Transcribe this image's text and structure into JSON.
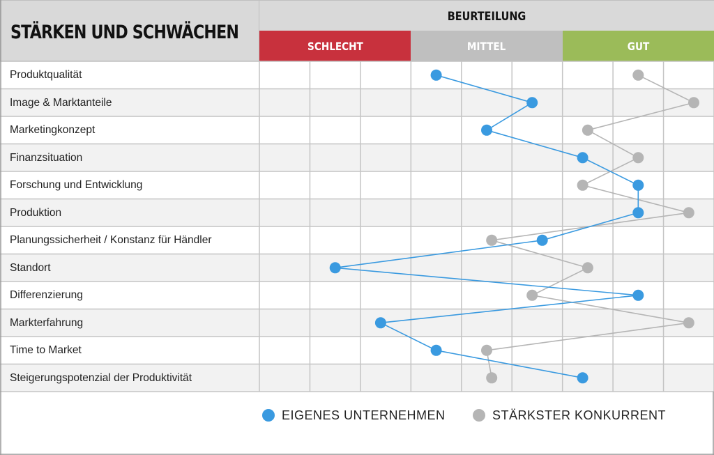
{
  "title": "STÄRKEN UND SCHWÄCHEN",
  "header": "BEURTEILUNG",
  "bands": [
    {
      "label": "SCHLECHT",
      "color": "#c8313d"
    },
    {
      "label": "MITTEL",
      "color": "#bfbfbf"
    },
    {
      "label": "GUT",
      "color": "#9bbb59"
    }
  ],
  "legend": [
    {
      "label": "EIGENES UNTERNEHMEN",
      "color": "#3a9ae0"
    },
    {
      "label": "STÄRKSTER KONKURRENT",
      "color": "#b5b5b5"
    }
  ],
  "chart_data": {
    "type": "line",
    "categories": [
      "Produktqualität",
      "Image & Marktanteile",
      "Marketingkonzept",
      "Finanzsituation",
      "Forschung und Entwicklung",
      "Produktion",
      "Planungssicherheit / Konstanz für Händler",
      "Standort",
      "Differenzierung",
      "Markterfahrung",
      "Time to Market",
      "Steigerungspotenzial der Produktivität"
    ],
    "xlim": [
      0,
      9
    ],
    "series": [
      {
        "name": "EIGENES UNTERNEHMEN",
        "color": "#3a9ae0",
        "values": [
          3.5,
          5.4,
          4.5,
          6.4,
          7.5,
          7.5,
          5.6,
          1.5,
          7.5,
          2.4,
          3.5,
          6.4
        ]
      },
      {
        "name": "STÄRKSTER KONKURRENT",
        "color": "#b5b5b5",
        "values": [
          7.5,
          8.6,
          6.5,
          7.5,
          6.4,
          8.5,
          4.6,
          6.5,
          5.4,
          8.5,
          4.5,
          4.6
        ]
      }
    ]
  }
}
